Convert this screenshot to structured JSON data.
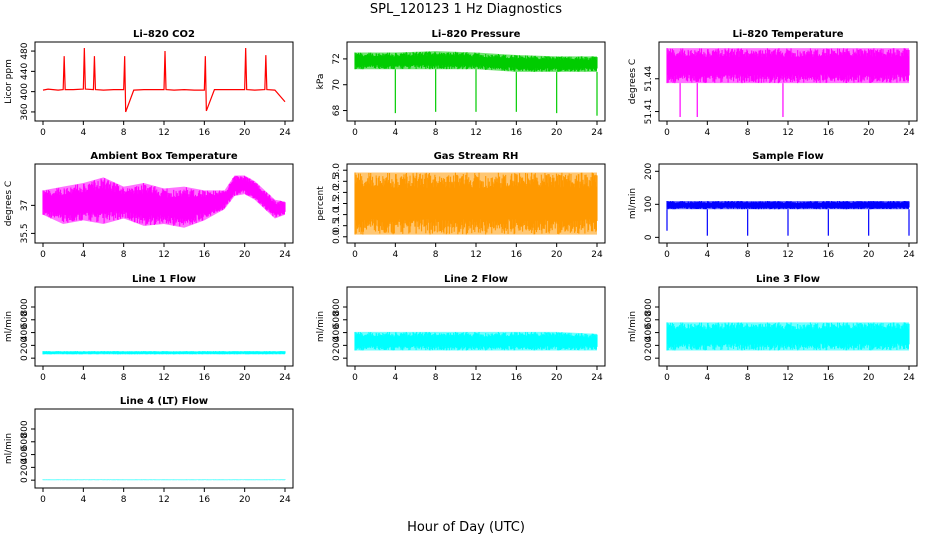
{
  "figure": {
    "title": "SPL_120123  1 Hz Diagnostics",
    "xlabel": "Hour of Day (UTC)"
  },
  "chart_data": [
    {
      "type": "line",
      "title": "Li–820 CO2",
      "ylabel": "Licor ppm",
      "color": "#ff0000",
      "xlim": [
        0,
        24
      ],
      "xticks": [
        0,
        4,
        8,
        12,
        16,
        20,
        24
      ],
      "ylim": [
        350,
        490
      ],
      "yticks": [
        360,
        400,
        440,
        480
      ],
      "x": [
        0,
        0.5,
        1,
        1.5,
        2,
        2.1,
        2.2,
        3,
        4,
        4.1,
        4.2,
        5,
        5.1,
        5.2,
        6,
        7,
        8,
        8.1,
        8.2,
        9,
        10,
        11,
        12,
        12.1,
        12.2,
        13,
        14,
        15,
        16,
        16.1,
        16.2,
        17,
        18,
        19,
        20,
        20.1,
        20.2,
        21,
        22,
        22.1,
        22.2,
        23,
        24
      ],
      "y": [
        403,
        405,
        404,
        403,
        404,
        470,
        404,
        404,
        405,
        486,
        405,
        404,
        470,
        404,
        403,
        404,
        404,
        470,
        360,
        403,
        404,
        404,
        404,
        480,
        404,
        403,
        404,
        403,
        403,
        470,
        362,
        404,
        404,
        404,
        404,
        486,
        404,
        403,
        404,
        472,
        404,
        403,
        380
      ]
    },
    {
      "type": "area",
      "title": "Li–820 Pressure",
      "ylabel": "kPa",
      "color": "#00cc00",
      "xlim": [
        0,
        24
      ],
      "xticks": [
        0,
        4,
        8,
        12,
        16,
        20,
        24
      ],
      "ylim": [
        67.5,
        73
      ],
      "yticks": [
        68,
        70,
        72
      ],
      "x": [
        0,
        4,
        8,
        12,
        16,
        20,
        24
      ],
      "ymin": [
        71.2,
        71.2,
        71.2,
        71.2,
        71.0,
        71.0,
        71.0
      ],
      "ymax": [
        72.5,
        72.5,
        72.6,
        72.5,
        72.3,
        72.2,
        72.2
      ],
      "dips": [
        {
          "x": 4,
          "y": 67.8
        },
        {
          "x": 8,
          "y": 67.9
        },
        {
          "x": 12,
          "y": 67.9
        },
        {
          "x": 16,
          "y": 67.9
        },
        {
          "x": 20,
          "y": 67.8
        },
        {
          "x": 24,
          "y": 67.6
        }
      ]
    },
    {
      "type": "area",
      "title": "Li–820 Temperature",
      "ylabel": "degrees C",
      "color": "#ff00ff",
      "xlim": [
        0,
        24
      ],
      "xticks": [
        0,
        4,
        8,
        12,
        16,
        20,
        24
      ],
      "ylim": [
        51.405,
        51.47
      ],
      "yticks": [
        51.41,
        51.44
      ],
      "ytick_labels": [
        "51.41",
        "51.44"
      ],
      "x": [
        0,
        24
      ],
      "ymin": [
        51.436,
        51.436
      ],
      "ymax": [
        51.468,
        51.468
      ],
      "dips": [
        {
          "x": 1.3,
          "y": 51.405
        },
        {
          "x": 3.0,
          "y": 51.405
        },
        {
          "x": 11.5,
          "y": 51.405
        }
      ]
    },
    {
      "type": "area",
      "title": "Ambient Box Temperature",
      "ylabel": "degrees C",
      "color": "#ff00ff",
      "xlim": [
        0,
        24
      ],
      "xticks": [
        0,
        4,
        8,
        12,
        16,
        20,
        24
      ],
      "ylim": [
        35.2,
        39.0
      ],
      "yticks": [
        35.5,
        37.0
      ],
      "x": [
        0,
        2,
        4,
        6,
        8,
        10,
        12,
        14,
        16,
        18,
        19,
        20,
        21,
        22,
        23,
        24
      ],
      "ymin": [
        36.5,
        36.0,
        36.2,
        36.0,
        36.3,
        35.9,
        36.0,
        35.8,
        36.2,
        36.8,
        37.5,
        37.6,
        37.3,
        36.8,
        36.3,
        36.5
      ],
      "ymax": [
        37.8,
        38.0,
        38.2,
        38.5,
        38.0,
        38.2,
        37.9,
        38.0,
        37.8,
        37.8,
        38.6,
        38.6,
        38.3,
        37.8,
        37.3,
        37.2
      ]
    },
    {
      "type": "area",
      "title": "Gas Stream RH",
      "ylabel": "percent",
      "color": "#ff9900",
      "xlim": [
        0,
        24
      ],
      "xticks": [
        0,
        4,
        8,
        12,
        16,
        20,
        24
      ],
      "ylim": [
        -0.1,
        3.1
      ],
      "yticks": [
        0.0,
        0.5,
        1.0,
        1.5,
        2.0,
        2.5,
        3.0
      ],
      "ytick_labels": [
        "0.0",
        "0.5",
        "1.0",
        "1.5",
        "2.0",
        "2.5",
        "3.0"
      ],
      "x": [
        0,
        4,
        8,
        12,
        16,
        20,
        24
      ],
      "ymin": [
        0.1,
        0.1,
        0.1,
        0.1,
        0.1,
        0.1,
        0.1
      ],
      "ymax": [
        2.9,
        2.9,
        2.9,
        2.9,
        2.9,
        2.9,
        2.9
      ]
    },
    {
      "type": "area",
      "title": "Sample Flow",
      "ylabel": "ml/min",
      "color": "#0000ff",
      "xlim": [
        0,
        24
      ],
      "xticks": [
        0,
        4,
        8,
        12,
        16,
        20,
        24
      ],
      "ylim": [
        -5,
        210
      ],
      "yticks": [
        0,
        100,
        200
      ],
      "x": [
        0,
        24
      ],
      "ymin": [
        85,
        85
      ],
      "ymax": [
        110,
        110
      ],
      "dips": [
        {
          "x": 0,
          "y": 20
        },
        {
          "x": 4,
          "y": 5
        },
        {
          "x": 8,
          "y": 5
        },
        {
          "x": 12,
          "y": 5
        },
        {
          "x": 16,
          "y": 5
        },
        {
          "x": 20,
          "y": 5
        },
        {
          "x": 24,
          "y": 5
        }
      ]
    },
    {
      "type": "area",
      "title": "Line 1 Flow",
      "ylabel": "ml/min",
      "color": "#00ffff",
      "xlim": [
        0,
        24
      ],
      "xticks": [
        0,
        4,
        8,
        12,
        16,
        20,
        24
      ],
      "ylim": [
        -60,
        1050
      ],
      "yticks": [
        0,
        200,
        400,
        600,
        800
      ],
      "x": [
        0,
        24
      ],
      "ymin": [
        60,
        60
      ],
      "ymax": [
        110,
        110
      ]
    },
    {
      "type": "area",
      "title": "Line 2 Flow",
      "ylabel": "ml/min",
      "color": "#00ffff",
      "xlim": [
        0,
        24
      ],
      "xticks": [
        0,
        4,
        8,
        12,
        16,
        20,
        24
      ],
      "ylim": [
        -60,
        1050
      ],
      "yticks": [
        0,
        200,
        400,
        600,
        800
      ],
      "x": [
        0,
        20,
        24
      ],
      "ymin": [
        120,
        120,
        120
      ],
      "ymax": [
        410,
        410,
        380
      ]
    },
    {
      "type": "area",
      "title": "Line 3 Flow",
      "ylabel": "ml/min",
      "color": "#00ffff",
      "xlim": [
        0,
        24
      ],
      "xticks": [
        0,
        4,
        8,
        12,
        16,
        20,
        24
      ],
      "ylim": [
        -60,
        1050
      ],
      "yticks": [
        0,
        200,
        400,
        600,
        800
      ],
      "x": [
        0,
        24
      ],
      "ymin": [
        120,
        120
      ],
      "ymax": [
        560,
        560
      ]
    },
    {
      "type": "area",
      "title": "Line 4 (LT) Flow",
      "ylabel": "ml/min",
      "color": "#00ffff",
      "xlim": [
        0,
        24
      ],
      "xticks": [
        0,
        4,
        8,
        12,
        16,
        20,
        24
      ],
      "ylim": [
        -60,
        1050
      ],
      "yticks": [
        0,
        200,
        400,
        600,
        800
      ],
      "x": [
        0,
        24
      ],
      "ymin": [
        0,
        0
      ],
      "ymax": [
        10,
        10
      ]
    }
  ]
}
